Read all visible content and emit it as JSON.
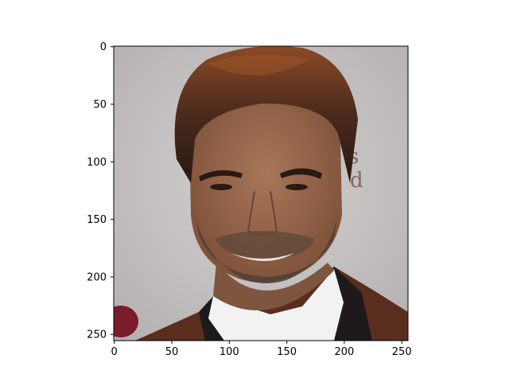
{
  "figure": {
    "image_subject": "portrait photo of smiling man with dark hair and stubble",
    "image_extent": {
      "x": [
        0,
        256
      ],
      "y": [
        0,
        256
      ]
    },
    "x_ticks": [
      "0",
      "50",
      "100",
      "150",
      "200",
      "250"
    ],
    "y_ticks": [
      "0",
      "50",
      "100",
      "150",
      "200",
      "250"
    ],
    "colors": {
      "background": "#ffffff",
      "axis": "#000000",
      "backdrop": "#c9c6c6",
      "skin": "#9a6a4e",
      "hair": "#3a2018",
      "hair_highlight": "#8a4a26",
      "beard": "#4f4036",
      "jacket": "#5a2e1e",
      "shirt": "#f2f2f2",
      "lapel": "#1e1a1c"
    }
  }
}
